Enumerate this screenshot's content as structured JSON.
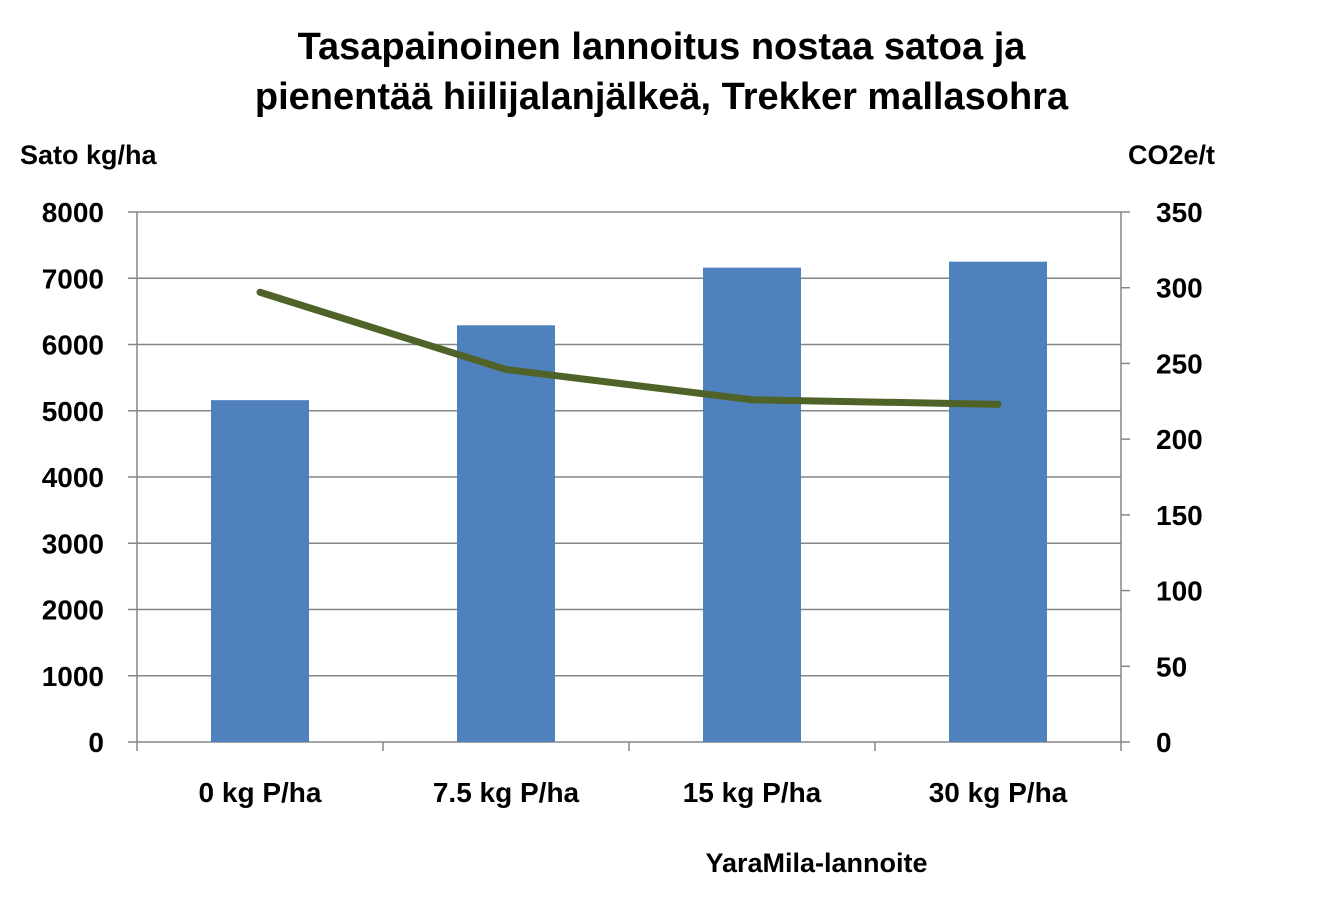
{
  "chart_data": {
    "type": "bar",
    "title": "Tasapainoinen lannoitus nostaa satoa ja pienentää hiilijalanjälkeä, Trekker mallasohra",
    "title_lines": [
      "Tasapainoinen lannoitus nostaa satoa ja",
      "pienentää hiilijalanjälkeä, Trekker mallasohra"
    ],
    "xlabel": "YaraMila-lannoite",
    "ylabel": "Sato kg/ha",
    "y2label": "CO2e/t",
    "categories": [
      "0 kg P/ha",
      "7.5 kg P/ha",
      "15 kg P/ha",
      "30 kg P/ha"
    ],
    "series": [
      {
        "name": "Sato kg/ha",
        "type": "bar",
        "axis": "left",
        "color": "#4F81BD",
        "values": [
          5160,
          6290,
          7160,
          7250
        ]
      },
      {
        "name": "CO2e/t",
        "type": "line",
        "axis": "right",
        "color": "#4F6228",
        "values": [
          297,
          246,
          226,
          223
        ]
      }
    ],
    "ylim": [
      0,
      8000
    ],
    "yticks": [
      0,
      1000,
      2000,
      3000,
      4000,
      5000,
      6000,
      7000,
      8000
    ],
    "y2lim": [
      0,
      350
    ],
    "y2ticks": [
      0,
      50,
      100,
      150,
      200,
      250,
      300,
      350
    ],
    "grid": true,
    "legend": "none"
  }
}
